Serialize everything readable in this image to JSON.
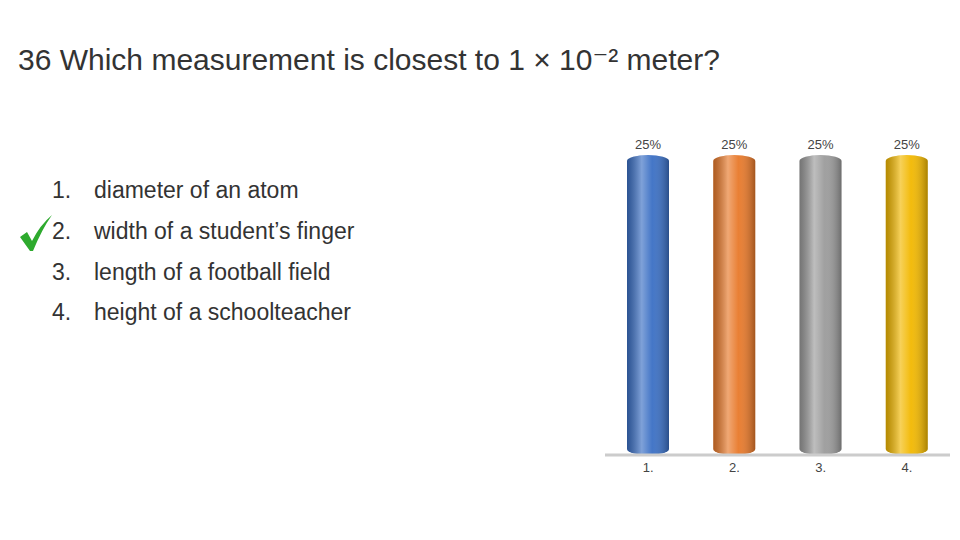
{
  "title": "36 Which measurement is closest to 1 × 10⁻² meter?",
  "options": [
    {
      "label": "1.",
      "text": "diameter of an atom",
      "checked": false
    },
    {
      "label": "2.",
      "text": "width of a student’s finger",
      "checked": true
    },
    {
      "label": "3.",
      "text": "length of a football field",
      "checked": false
    },
    {
      "label": "4.",
      "text": "height of a schoolteacher",
      "checked": false
    }
  ],
  "chart_data": {
    "type": "bar",
    "categories": [
      "1.",
      "2.",
      "3.",
      "4."
    ],
    "values": [
      25,
      25,
      25,
      25
    ],
    "value_labels": [
      "25%",
      "25%",
      "25%",
      "25%"
    ],
    "data_labels": true,
    "colors": [
      "#3a6fc4",
      "#e8792a",
      "#9b9b9b",
      "#f2b800"
    ],
    "ylim": [
      0,
      25
    ],
    "tick_labels": "x"
  }
}
